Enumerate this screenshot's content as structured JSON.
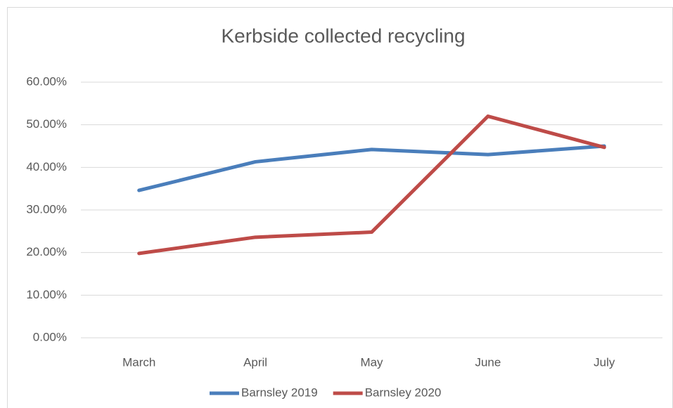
{
  "chart_data": {
    "type": "line",
    "title": "Kerbside collected recycling",
    "categories": [
      "March",
      "April",
      "May",
      "June",
      "July"
    ],
    "series": [
      {
        "name": "Barnsley 2019",
        "color": "#4a7ebb",
        "values": [
          34.6,
          41.3,
          44.2,
          43.0,
          45.0
        ]
      },
      {
        "name": "Barnsley 2020",
        "color": "#be4b48",
        "values": [
          19.8,
          23.6,
          24.8,
          52.0,
          44.7
        ]
      }
    ],
    "ylim": [
      0,
      60
    ],
    "yticks": [
      {
        "value": 0,
        "label": "0.00%"
      },
      {
        "value": 10,
        "label": "10.00%"
      },
      {
        "value": 20,
        "label": "20.00%"
      },
      {
        "value": 30,
        "label": "30.00%"
      },
      {
        "value": 40,
        "label": "40.00%"
      },
      {
        "value": 50,
        "label": "50.00%"
      },
      {
        "value": 60,
        "label": "60.00%"
      }
    ],
    "grid": true,
    "legend": "bottom"
  }
}
